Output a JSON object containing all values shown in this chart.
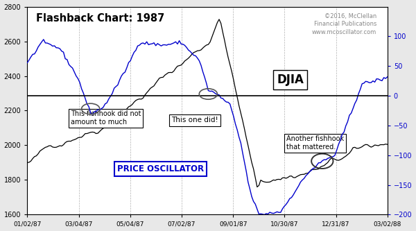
{
  "title": "Flashback Chart: 1987",
  "copyright": "©2016, McClellan\nFinancial Publications\nwww.mcoscillator.com",
  "djia_label": "DJIA",
  "osc_label": "PRICE OSCILLATOR",
  "background_color": "#e8e8e8",
  "plot_bg": "#ffffff",
  "djia_color": "#000000",
  "osc_color": "#0000cc",
  "zero_line_color": "#000000",
  "annotation1": "This fishhook did not\namount to much",
  "annotation2": "This one did!",
  "annotation3": "Another fishhook\nthat mattered.",
  "xticklabels": [
    "01/02/87",
    "03/04/87",
    "05/04/87",
    "07/02/87",
    "09/01/87",
    "10/30/87",
    "12/31/87",
    "03/02/88"
  ],
  "ylim_left": [
    1600,
    2800
  ],
  "ylim_right": [
    -200,
    150
  ],
  "yticks_left": [
    1600,
    1800,
    2000,
    2200,
    2400,
    2600,
    2800
  ],
  "yticks_right": [
    -200,
    -150,
    -100,
    -50,
    0,
    50,
    100
  ],
  "n_points": 200
}
